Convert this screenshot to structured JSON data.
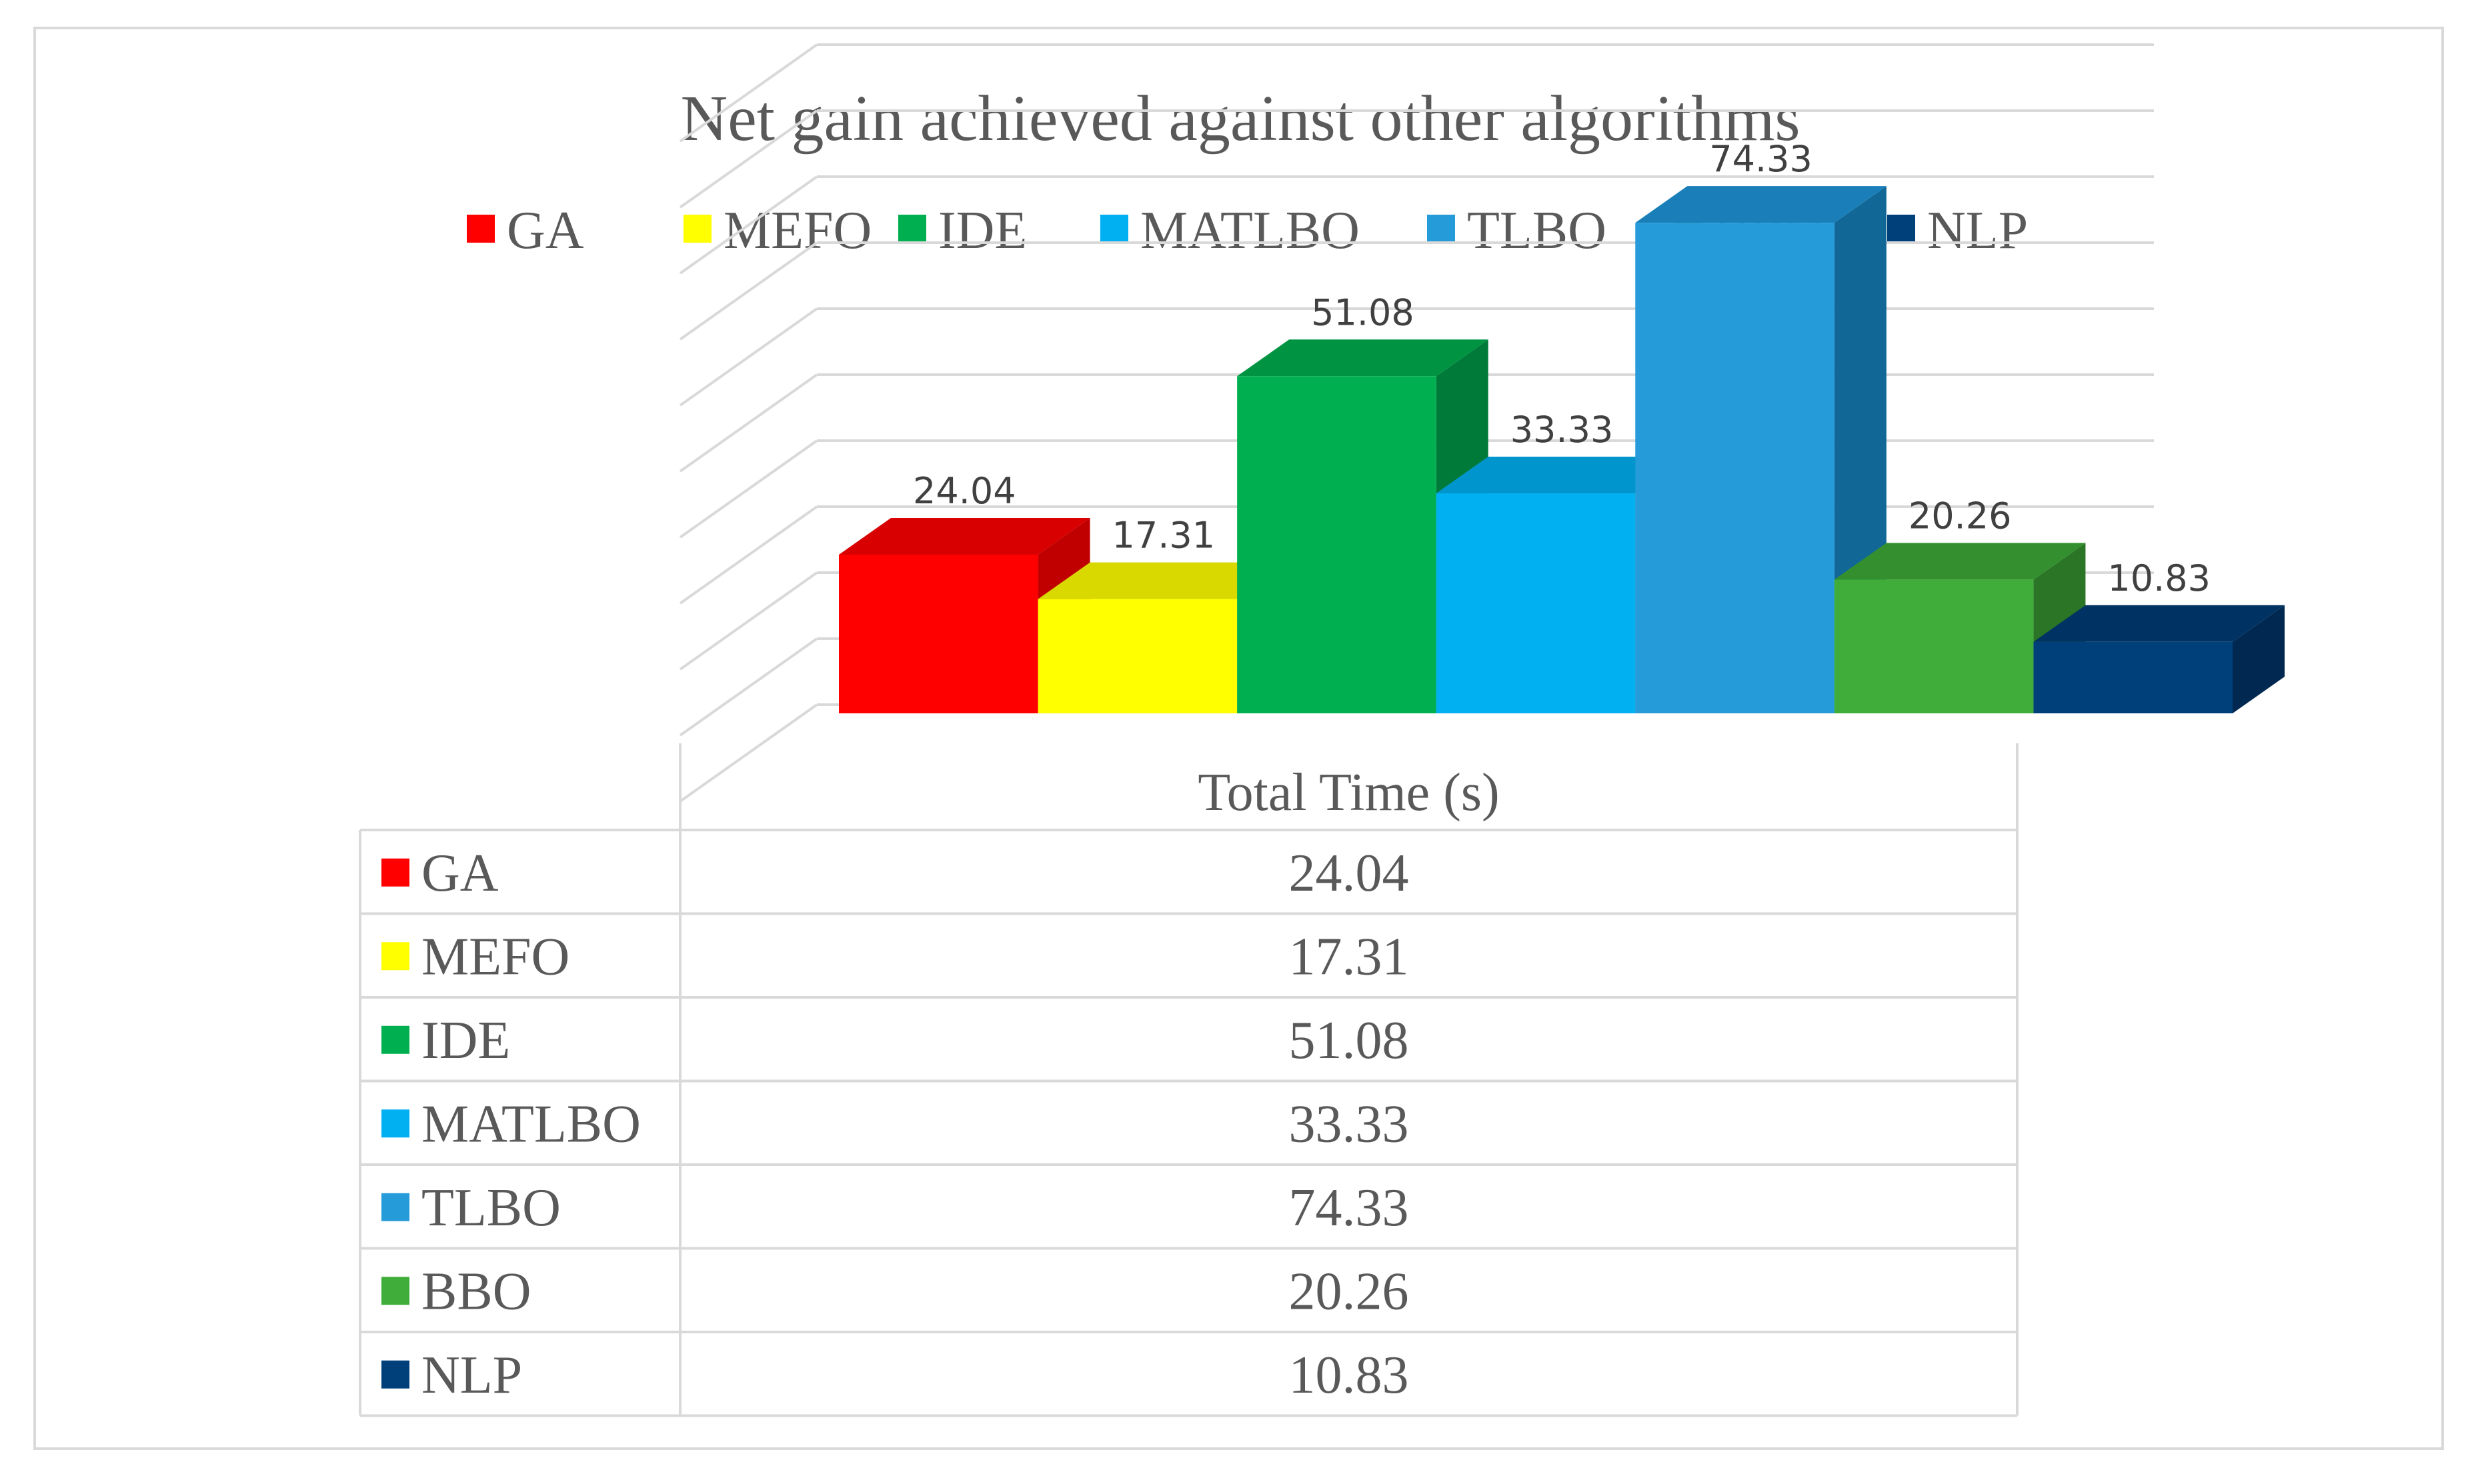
{
  "chart_data": {
    "type": "bar",
    "title": "Net gain achieved against other algorithms",
    "categories": [
      "Total Time (s)"
    ],
    "series": [
      {
        "name": "GA",
        "values": [
          24.04
        ],
        "label": "24.04",
        "color": "#ff0000",
        "top_color": "#d80000",
        "side_color": "#c00000"
      },
      {
        "name": "MEFO",
        "values": [
          17.31
        ],
        "label": "17.31",
        "color": "#ffff00",
        "top_color": "#d9d900",
        "side_color": "#bfbf00"
      },
      {
        "name": "IDE",
        "values": [
          51.08
        ],
        "label": "51.08",
        "color": "#00b050",
        "top_color": "#009442",
        "side_color": "#007a38"
      },
      {
        "name": "MATLBO",
        "values": [
          33.33
        ],
        "label": "33.33",
        "color": "#00b0f0",
        "top_color": "#0095cc",
        "side_color": "#007ea8"
      },
      {
        "name": "TLBO",
        "values": [
          74.33
        ],
        "label": "74.33",
        "color": "#259bd9",
        "top_color": "#1a7fb8",
        "side_color": "#116896"
      },
      {
        "name": "BBO",
        "values": [
          20.26
        ],
        "label": "20.26",
        "color": "#40ad3a",
        "top_color": "#34902f",
        "side_color": "#2a7626"
      },
      {
        "name": "NLP",
        "values": [
          10.83
        ],
        "label": "10.83",
        "color": "#00407a",
        "top_color": "#003363",
        "side_color": "#002850"
      }
    ],
    "ylim": [
      0,
      100
    ],
    "grid": true,
    "legend_position": "top",
    "data_table": true
  }
}
